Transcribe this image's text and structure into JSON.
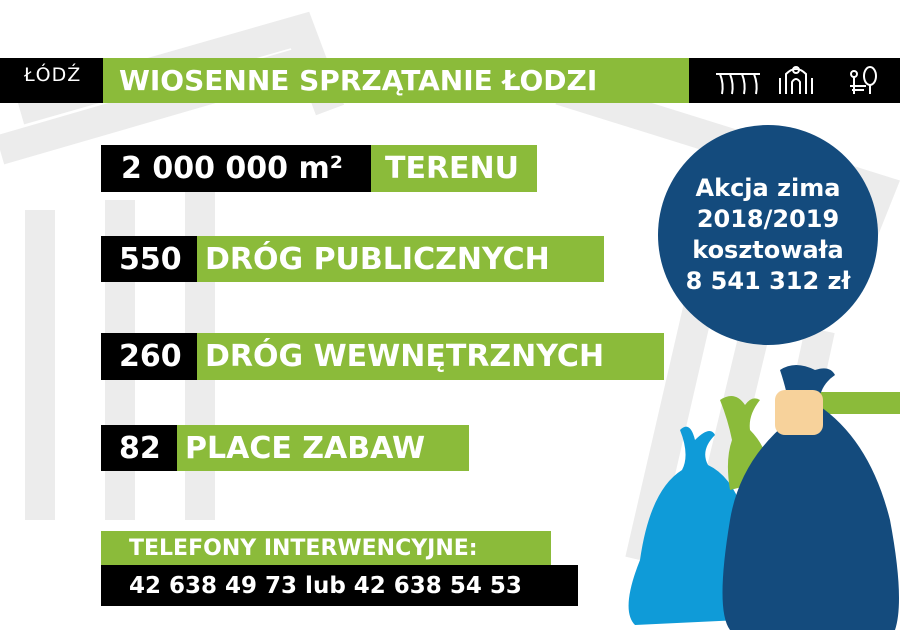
{
  "colors": {
    "green": "#8bbb3a",
    "black": "#000000",
    "navy": "#144b7d",
    "light_blue": "#0f9bd8",
    "skin": "#f7d29b",
    "watermark": "#ebebeb"
  },
  "header": {
    "logo": "ŁÓDŹ",
    "title": "WIOSENNE SPRZĄTANIE ŁODZI",
    "icons": [
      "arches-icon",
      "gate-icon",
      "park-bench-tree-icon"
    ]
  },
  "stats": [
    {
      "value": "2 000 000 m²",
      "label": "TERENU"
    },
    {
      "value": "550",
      "label": "DRÓG PUBLICZNYCH"
    },
    {
      "value": "260",
      "label": "DRÓG WEWNĘTRZNYCH"
    },
    {
      "value": "82",
      "label": "PLACE ZABAW"
    }
  ],
  "phones": {
    "label": "TELEFONY INTERWENCYJNE:",
    "numbers": "42 638 49 73 lub 42 638 54 53"
  },
  "circle": {
    "line1": "Akcja zima",
    "line2": "2018/2019",
    "line3": "kosztowała",
    "line4": "8 541 312 zł"
  }
}
